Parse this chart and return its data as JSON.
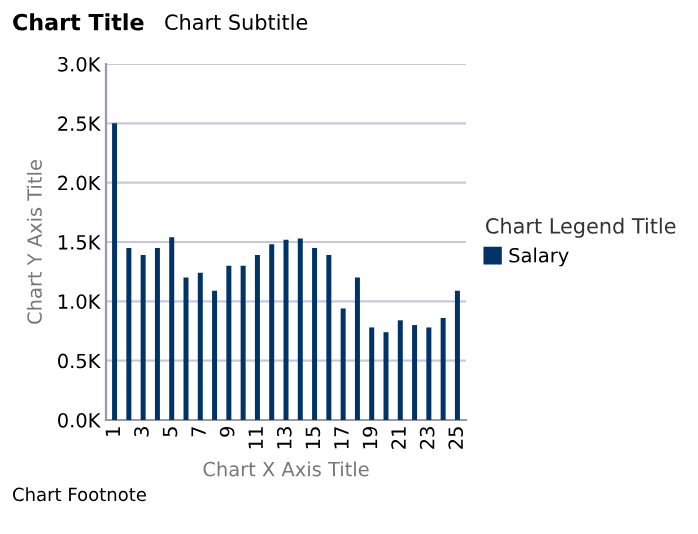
{
  "chart_data": {
    "type": "bar",
    "title": "Chart Title",
    "subtitle": "Chart Subtitle",
    "xlabel": "Chart X Axis Title",
    "ylabel": "Chart Y Axis Title",
    "legend_title": "Chart Legend Title",
    "annotations": [
      "Chart Footnote"
    ],
    "categories": [
      "1",
      null,
      "3",
      null,
      "5",
      null,
      "7",
      null,
      "9",
      null,
      "11",
      null,
      "13",
      null,
      "15",
      null,
      "17",
      null,
      "19",
      null,
      "21",
      null,
      "23",
      null,
      "25"
    ],
    "series": [
      {
        "name": "Salary",
        "color": "#003366",
        "values": [
          2500,
          1450,
          1390,
          1450,
          1540,
          1200,
          1240,
          1090,
          1300,
          1300,
          1390,
          1480,
          1520,
          1530,
          1450,
          1390,
          940,
          1200,
          780,
          740,
          840,
          800,
          780,
          860,
          1090
        ]
      }
    ],
    "ylim": [
      0,
      3000
    ],
    "yticks": [
      {
        "value": 0,
        "label": "0.0K"
      },
      {
        "value": 500,
        "label": "0.5K"
      },
      {
        "value": 1000,
        "label": "1.0K"
      },
      {
        "value": 1500,
        "label": "1.5K"
      },
      {
        "value": 2000,
        "label": "2.0K"
      },
      {
        "value": 2500,
        "label": "2.5K"
      },
      {
        "value": 3000,
        "label": "3.0K"
      }
    ],
    "grid": "y",
    "legend": "right"
  }
}
